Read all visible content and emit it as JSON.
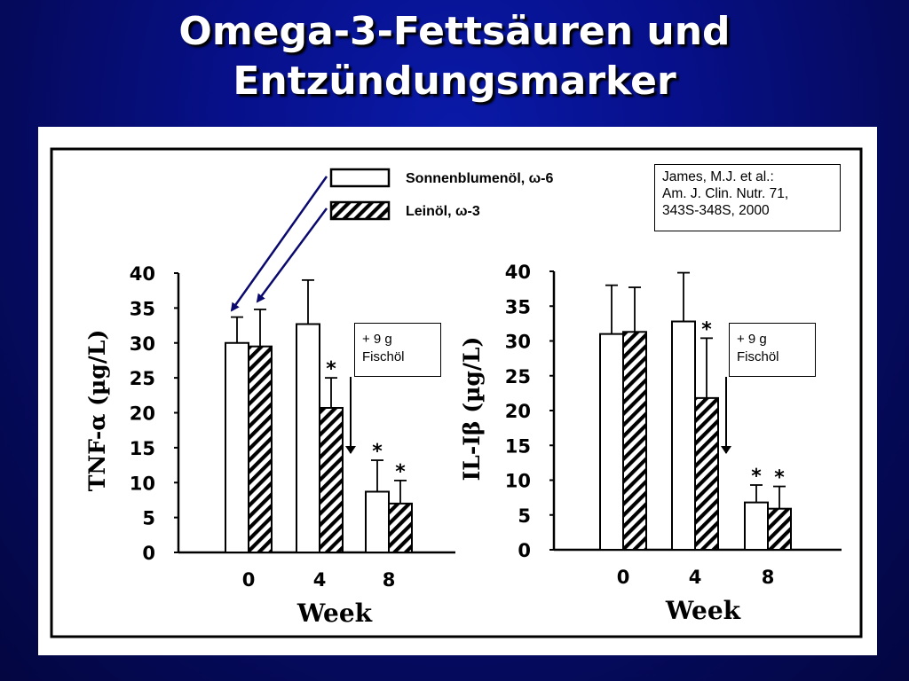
{
  "slide": {
    "title_line1": "Omega-3-Fettsäuren und",
    "title_line2": "Entzündungsmarker"
  },
  "legend": {
    "series1_label": "Sonnenblumenöl, ω-6",
    "series2_label": "Leinöl, ω-3"
  },
  "citation": {
    "line1": "James, M.J. et al.:",
    "line2": "Am. J. Clin. Nutr.  71,",
    "line3": "343S-348S, 2000"
  },
  "annotation": {
    "line1": "+ 9 g",
    "line2": "Fischöl"
  },
  "colors": {
    "background": "#07108a",
    "title": "#ffffff",
    "arrow": "#0a0a6e",
    "bars": "#000000"
  },
  "chart_data": [
    {
      "type": "bar",
      "categories": [
        "0",
        "4",
        "8"
      ],
      "xlabel": "Week",
      "ylabel": "TNF-α (µg/L)",
      "ylim": [
        0,
        40
      ],
      "yticks": [
        "0",
        "5",
        "10",
        "15",
        "20",
        "25",
        "30",
        "35",
        "40"
      ],
      "series": [
        {
          "name": "Sonnenblumenöl, ω-6",
          "values": [
            30,
            32.7,
            8.7
          ],
          "errors": [
            3.7,
            6.3,
            4.5
          ],
          "significant": [
            false,
            false,
            true
          ]
        },
        {
          "name": "Leinöl, ω-3",
          "values": [
            29.5,
            20.7,
            7
          ],
          "errors": [
            5.3,
            4.3,
            3.3
          ],
          "significant": [
            false,
            true,
            true
          ]
        }
      ]
    },
    {
      "type": "bar",
      "categories": [
        "0",
        "4",
        "8"
      ],
      "xlabel": "Week",
      "ylabel": "IL-Iβ (µg/L)",
      "ylim": [
        0,
        40
      ],
      "yticks": [
        "0",
        "5",
        "10",
        "15",
        "20",
        "25",
        "30",
        "35",
        "40"
      ],
      "series": [
        {
          "name": "Sonnenblumenöl, ω-6",
          "values": [
            31,
            32.8,
            6.8
          ],
          "errors": [
            7,
            7,
            2.5
          ],
          "significant": [
            false,
            false,
            true
          ]
        },
        {
          "name": "Leinöl, ω-3",
          "values": [
            31.3,
            21.8,
            5.9
          ],
          "errors": [
            6.4,
            8.6,
            3.2
          ],
          "significant": [
            false,
            true,
            true
          ]
        }
      ]
    }
  ]
}
